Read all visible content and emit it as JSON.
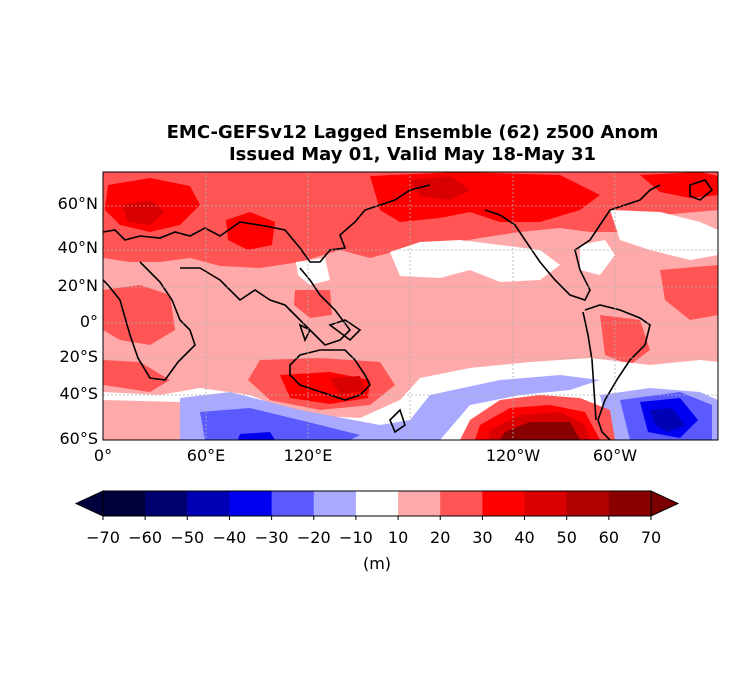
{
  "title_line1": "EMC-GEFSv12 Lagged Ensemble (62) z500 Anom",
  "title_line2": "Issued May 01, Valid May 18-May 31",
  "lat_labels": [
    "60°N",
    "40°N",
    "20°N",
    "0°",
    "20°S",
    "40°S",
    "60°S"
  ],
  "lon_labels": [
    "0°",
    "60°E",
    "120°E",
    "120°W",
    "60°W"
  ],
  "colorbar": {
    "ticks": [
      "−70",
      "−60",
      "−50",
      "−40",
      "−30",
      "−20",
      "−10",
      "10",
      "20",
      "30",
      "40",
      "50",
      "60",
      "70"
    ],
    "colors": [
      "#00003a",
      "#00006e",
      "#0000b4",
      "#0000f0",
      "#5a5aff",
      "#a9a9ff",
      "#ffffff",
      "#ffaaaa",
      "#ff5555",
      "#ff0000",
      "#d80000",
      "#b00000",
      "#880000"
    ],
    "under_color": "#00003a",
    "over_color": "#7a0000",
    "units": "(m)"
  }
}
